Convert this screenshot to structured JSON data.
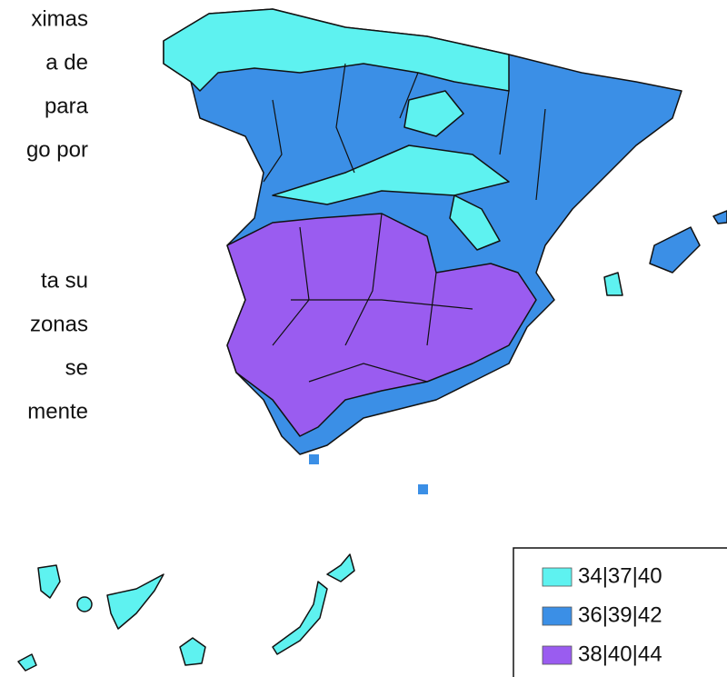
{
  "text_lines": [
    "ximas",
    "a  de",
    "para",
    "go por",
    "ta  su",
    "zonas",
    "se",
    "mente"
  ],
  "legend": [
    {
      "label": "34|37|40",
      "color": "#5ef2f0"
    },
    {
      "label": "36|39|42",
      "color": "#3b8fe6"
    },
    {
      "label": "38|40|44",
      "color": "#9a5cf0"
    }
  ]
}
